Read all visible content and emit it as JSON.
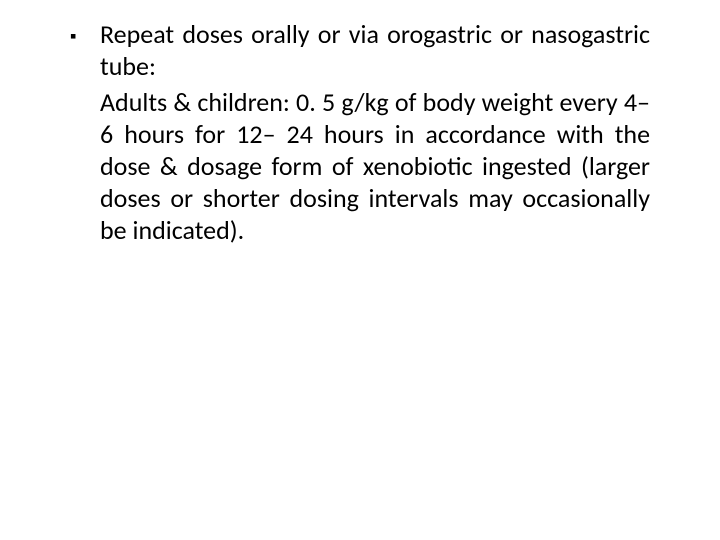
{
  "slide": {
    "background_color": "#ffffff",
    "text_color": "#000000",
    "font_family": "Calibri",
    "body_fontsize_pt": 20,
    "line_height": 1.23,
    "alignment": "justify",
    "bullet": {
      "marker": "▪",
      "text": "Repeat doses orally or via orogastric or nasogastric tube:"
    },
    "sub": {
      "text": "Adults & children: 0. 5 g/kg of body weight every 4– 6 hours for 12– 24 hours in accordance with the dose & dosage form of xenobiotic ingested (larger doses or shorter dosing intervals may occasionally be indicated)."
    }
  }
}
